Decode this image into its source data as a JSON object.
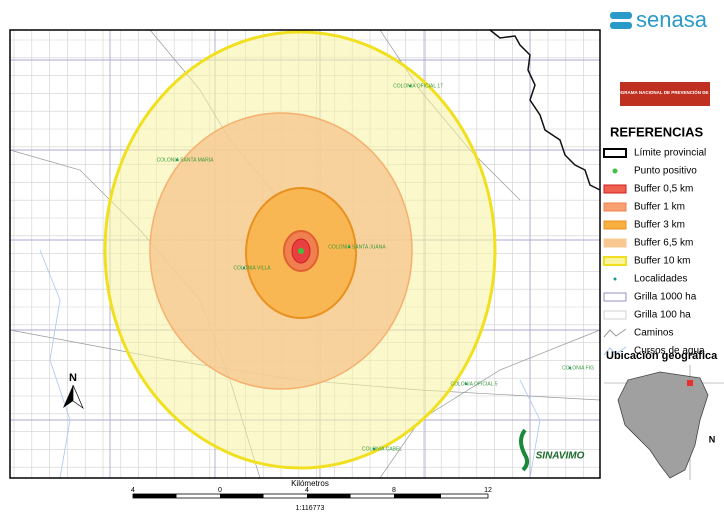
{
  "header": {
    "brand": "senasa",
    "program": "PROGRAMA NACIONAL DE PREVENCIÓN DE HLB"
  },
  "legend": {
    "title": "REFERENCIAS",
    "items": [
      "Límite provincial",
      "Punto positivo",
      "Buffer 0,5 km",
      "Buffer 1 km",
      "Buffer 3 km",
      "Buffer 6,5 km",
      "Buffer 10 km",
      "Localidades",
      "Grilla 1000 ha",
      "Grilla 100 ha",
      "Caminos",
      "Cursos de agua"
    ]
  },
  "locator_title": "Ubicación geográfica",
  "map_labels": [
    "COLONIA OFICIAL 17",
    "COLONIA SANTA MARIA",
    "COLONIA SANTA JUANA",
    "COLONIA VILLA",
    "COLONIA OFICIAL 5",
    "COLONIA CABEL",
    "COLONIA FIG"
  ],
  "logo": "SINAVIMO",
  "north": "N",
  "scale": {
    "ticks": [
      "4",
      "0",
      "4",
      "8",
      "12"
    ],
    "unit": "Kilómetros",
    "ratio": "1:116773"
  }
}
